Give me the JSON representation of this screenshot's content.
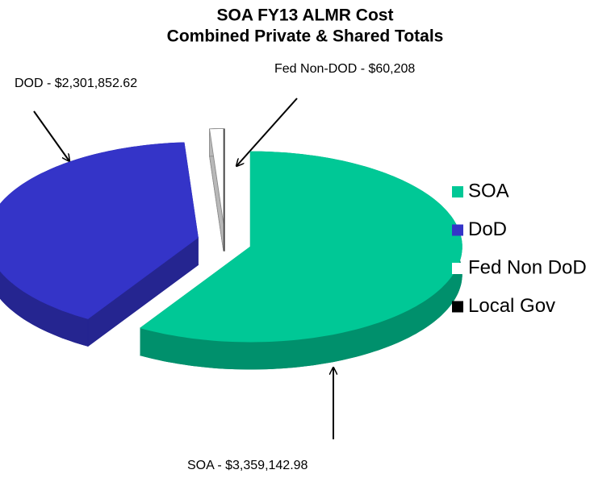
{
  "chart_data": {
    "type": "pie",
    "title": "SOA FY13 ALMR Cost",
    "subtitle": "Combined Private & Shared Totals",
    "categories": [
      "SOA",
      "DoD",
      "Fed Non DoD",
      "Local Gov"
    ],
    "values": [
      3359142.98,
      2301852.62,
      60208,
      0
    ],
    "value_labels": [
      "SOA - $3,359,142.98",
      "DOD - $2,301,852.62",
      "Fed Non-DOD - $60,208",
      null
    ],
    "colors": [
      "#00c896",
      "#3434c8",
      "#ffffff",
      "#000000"
    ],
    "legend": "right"
  }
}
